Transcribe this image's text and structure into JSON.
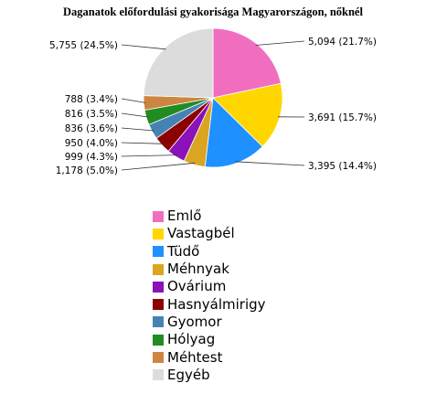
{
  "chart_data": {
    "type": "pie",
    "title": "Daganatok előfordulási gyakorisága Magyarországon, nőknél",
    "legend_position": "bottom",
    "start_angle_deg": 0,
    "direction": "clockwise",
    "slices": [
      {
        "name": "Emlő",
        "value": 5094,
        "label": "5,094 (21.7%)",
        "color": "#f06dbf"
      },
      {
        "name": "Vastagbél",
        "value": 3691,
        "label": "3,691 (15.7%)",
        "color": "#ffd600"
      },
      {
        "name": "Tüdő",
        "value": 3395,
        "label": "3,395 (14.4%)",
        "color": "#1e90ff"
      },
      {
        "name": "Méhnyak",
        "value": 1178,
        "label": "1,178 (5.0%)",
        "color": "#daa520"
      },
      {
        "name": "Ovárium",
        "value": 999,
        "label": "999 (4.3%)",
        "color": "#8b11b8"
      },
      {
        "name": "Hasnyálmirigy",
        "value": 950,
        "label": "950 (4.0%)",
        "color": "#8b0000"
      },
      {
        "name": "Gyomor",
        "value": 836,
        "label": "836 (3.6%)",
        "color": "#4682b4"
      },
      {
        "name": "Hólyag",
        "value": 816,
        "label": "816 (3.5%)",
        "color": "#228b22"
      },
      {
        "name": "Méhtest",
        "value": 788,
        "label": "788 (3.4%)",
        "color": "#cd853f"
      },
      {
        "name": "Egyéb",
        "value": 5755,
        "label": "5,755 (24.5%)",
        "color": "#dcdcdc"
      }
    ]
  }
}
